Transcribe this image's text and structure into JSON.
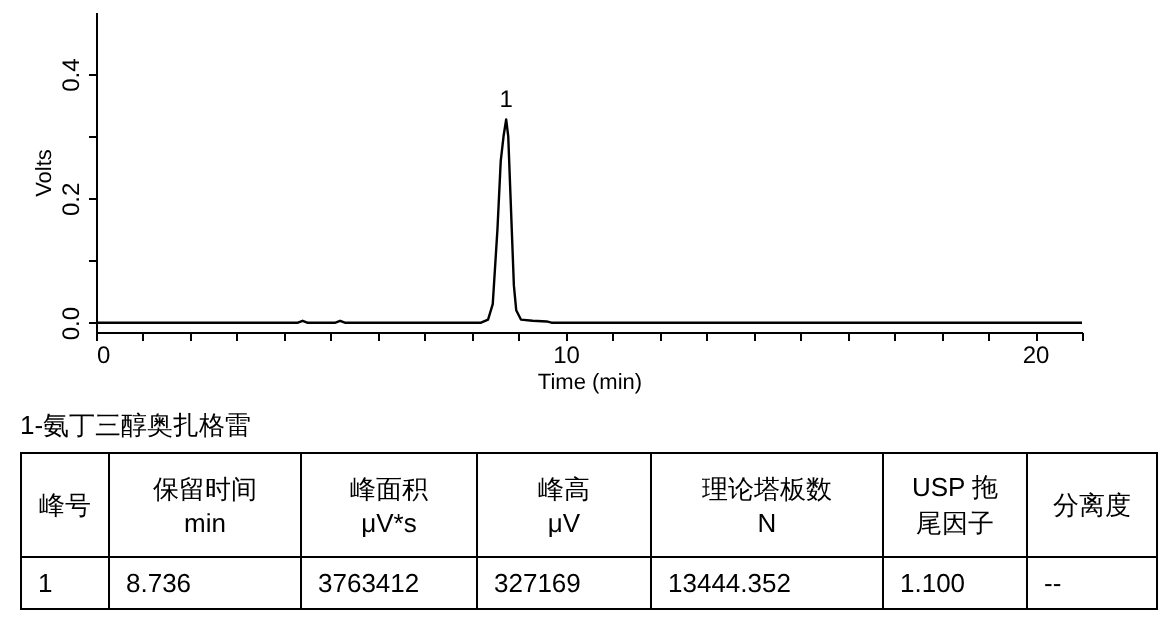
{
  "chart_data": {
    "type": "line",
    "xlabel": "Time (min)",
    "ylabel": "Volts",
    "series": [
      {
        "color": "#000000",
        "x": [
          0,
          4.3,
          4.4,
          4.5,
          5.1,
          5.2,
          5.3,
          8.2,
          8.35,
          8.45,
          8.55,
          8.62,
          8.68,
          8.736,
          8.78,
          8.83,
          8.9,
          8.95,
          9.05,
          9.3,
          9.6,
          9.7,
          21
        ],
        "values": [
          0,
          0,
          0.003,
          0,
          0,
          0.003,
          0,
          0,
          0.005,
          0.03,
          0.15,
          0.26,
          0.3,
          0.327,
          0.3,
          0.2,
          0.06,
          0.02,
          0.005,
          0.003,
          0.002,
          0,
          0
        ]
      }
    ],
    "xlim": [
      0,
      21
    ],
    "xticks": [
      0,
      {
        "value": 1,
        "label": null
      },
      {
        "value": 2,
        "label": null
      },
      {
        "value": 3,
        "label": null
      },
      {
        "value": 4,
        "label": null
      },
      {
        "value": 5,
        "label": null
      },
      {
        "value": 6,
        "label": null
      },
      {
        "value": 7,
        "label": null
      },
      {
        "value": 8,
        "label": null
      },
      {
        "value": 9,
        "label": null
      },
      10,
      {
        "value": 11,
        "label": null
      },
      {
        "value": 12,
        "label": null
      },
      {
        "value": 13,
        "label": null
      },
      {
        "value": 14,
        "label": null
      },
      {
        "value": 15,
        "label": null
      },
      {
        "value": 16,
        "label": null
      },
      {
        "value": 17,
        "label": null
      },
      {
        "value": 18,
        "label": null
      },
      {
        "value": 19,
        "label": null
      },
      20,
      {
        "value": 21,
        "label": null
      }
    ],
    "ylim": [
      -0.015,
      0.5
    ],
    "yticks": [
      {
        "value": 0,
        "label": "0.0"
      },
      {
        "value": 0.1,
        "label": null
      },
      {
        "value": 0.2,
        "label": "0.2"
      },
      {
        "value": 0.3,
        "label": null
      },
      {
        "value": 0.4,
        "label": "0.4"
      }
    ],
    "grid": false,
    "marker": "none",
    "line_style": "solid",
    "annotations": [
      {
        "text": "1",
        "x": 8.736,
        "y": 0.327
      },
      "1-氨丁三醇奥扎格雷",
      "峰号",
      "保留时间\nmin",
      "峰面积\nμV*s",
      "峰高\nμV",
      "理论塔板数\nN",
      "USP 拖尾因子",
      "分离度",
      "1",
      "8.736",
      "3763412",
      "327169",
      "13444.352",
      "1.100",
      "--"
    ]
  }
}
